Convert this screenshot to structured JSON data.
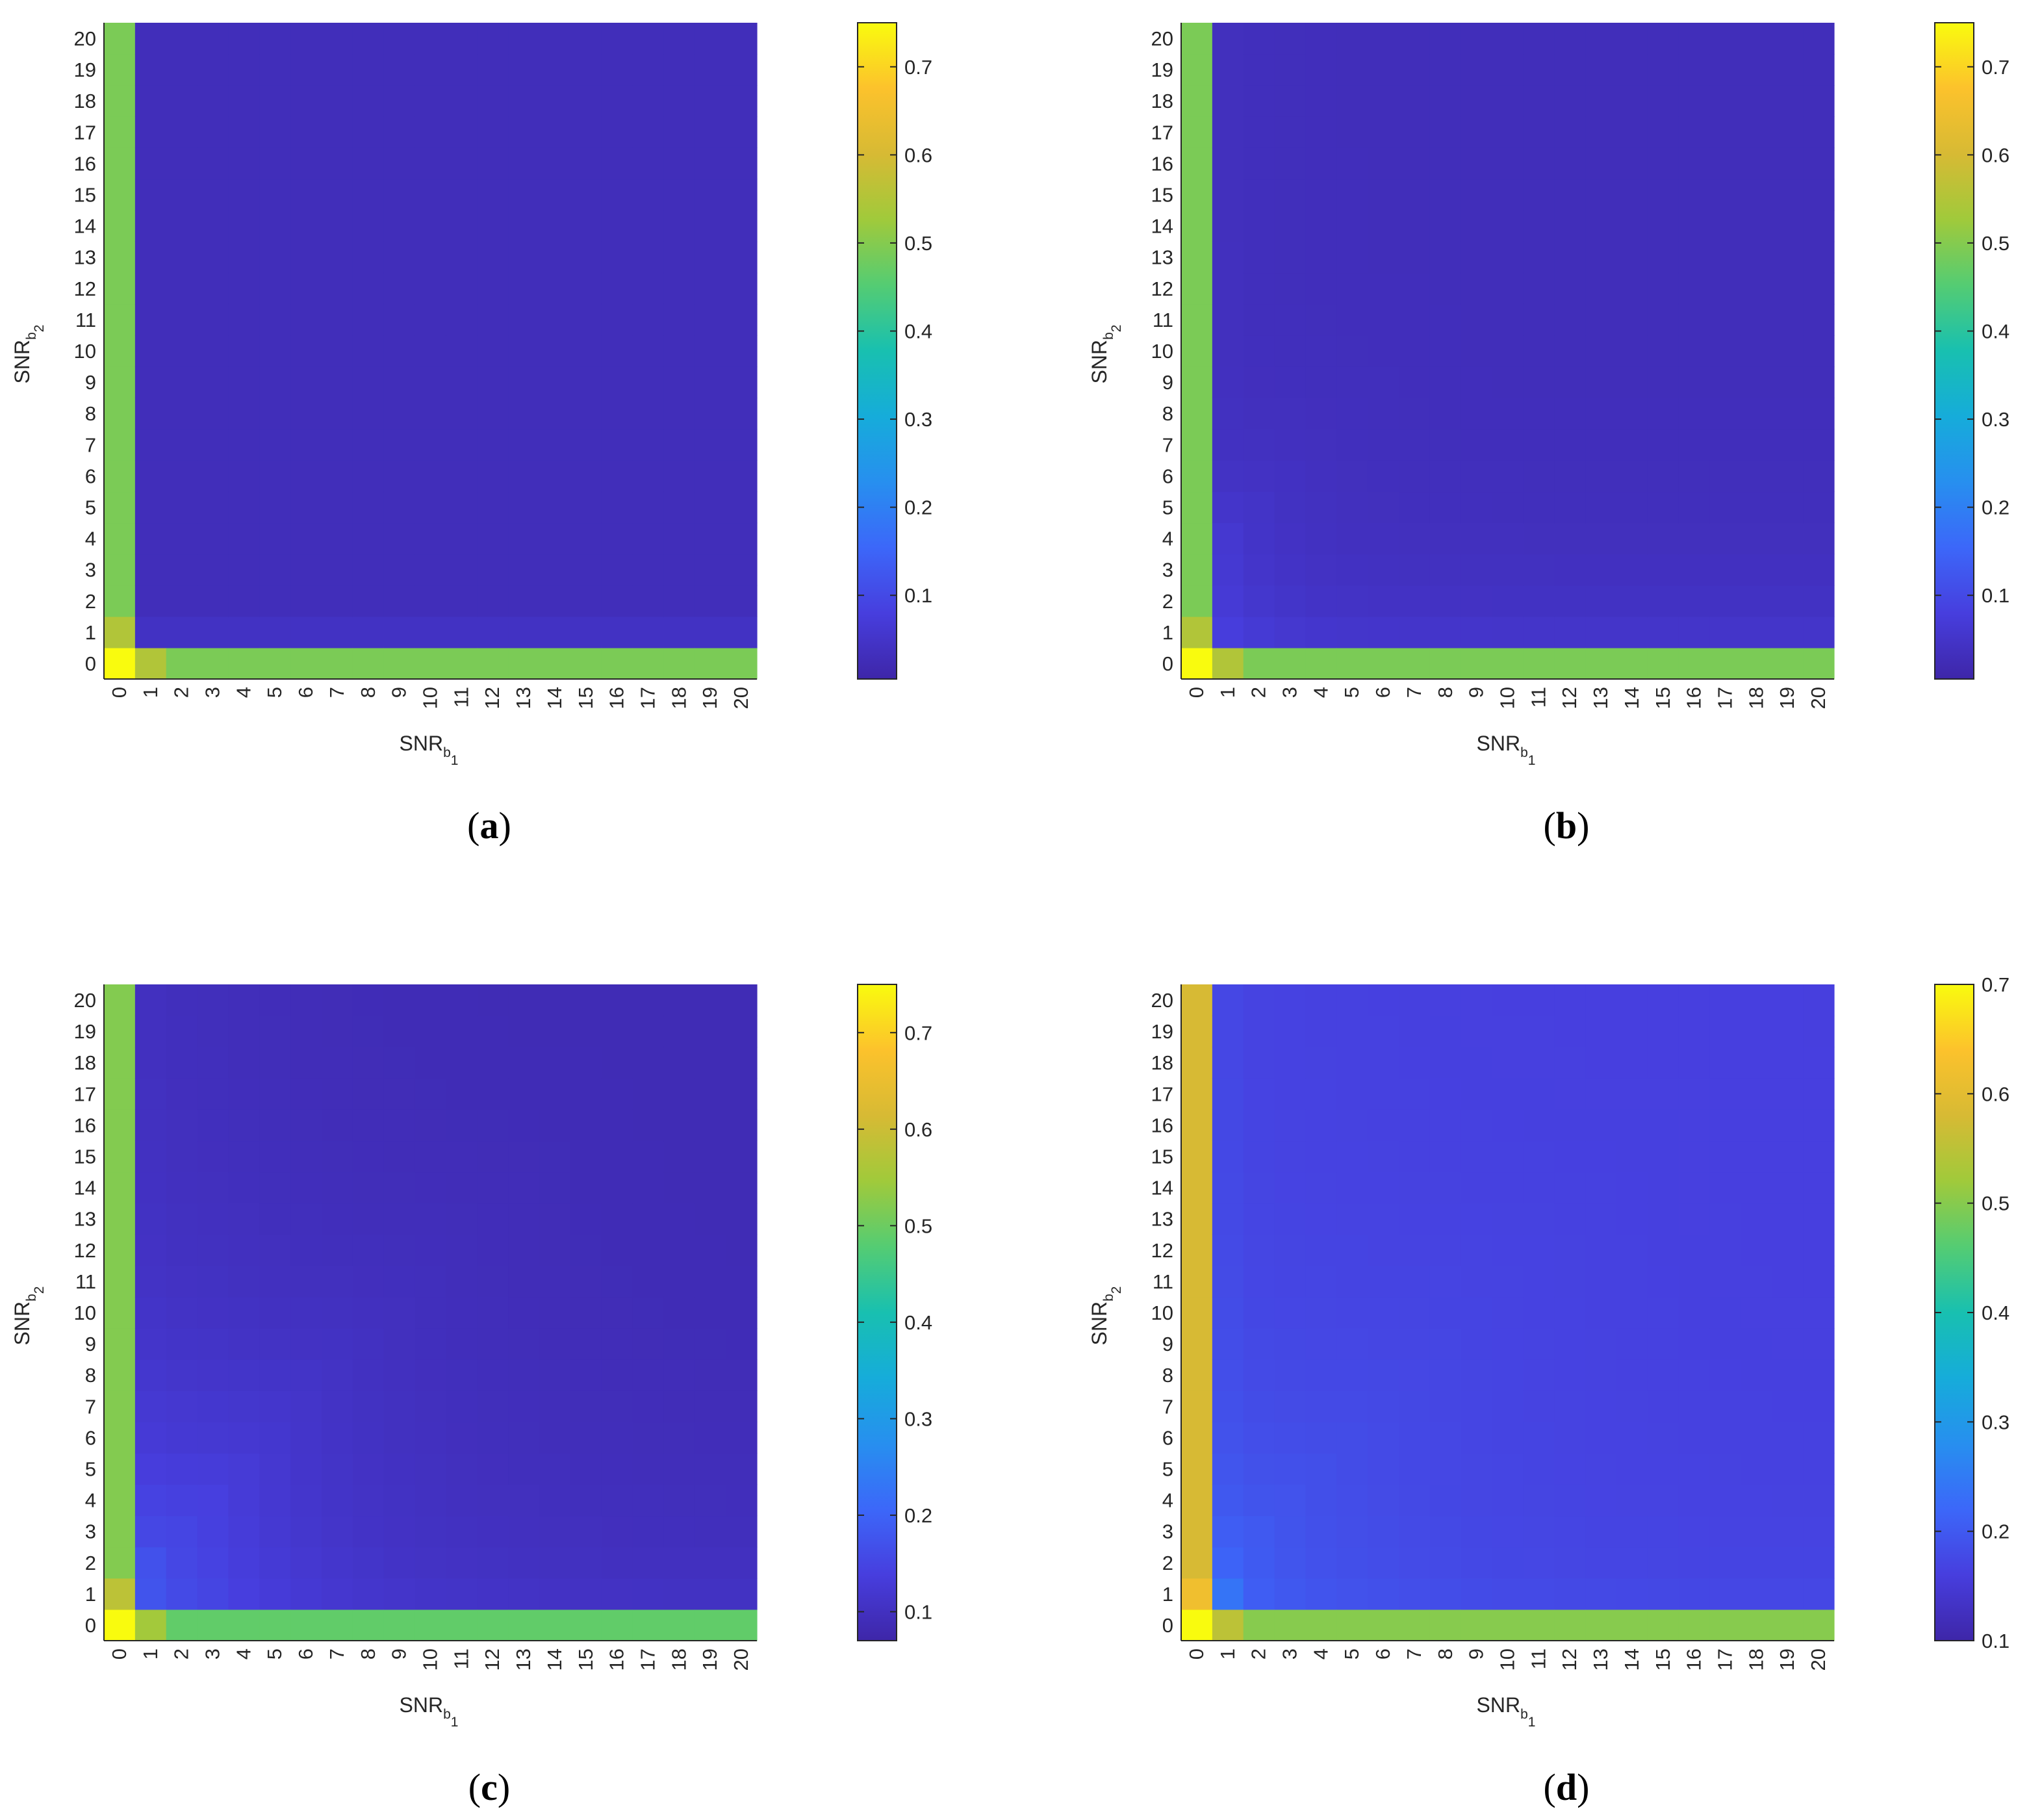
{
  "figure": {
    "panels": [
      {
        "caption_letter": "a",
        "xlabel_main": "SNR",
        "xlabel_sub": "b",
        "xlabel_subsub": "1",
        "ylabel_main": "SNR",
        "ylabel_sub": "b",
        "ylabel_subsub": "2"
      },
      {
        "caption_letter": "b",
        "xlabel_main": "SNR",
        "xlabel_sub": "b",
        "xlabel_subsub": "1",
        "ylabel_main": "SNR",
        "ylabel_sub": "b",
        "ylabel_subsub": "2"
      },
      {
        "caption_letter": "c",
        "xlabel_main": "SNR",
        "xlabel_sub": "b",
        "xlabel_subsub": "1",
        "ylabel_main": "SNR",
        "ylabel_sub": "b",
        "ylabel_subsub": "2"
      },
      {
        "caption_letter": "d",
        "xlabel_main": "SNR",
        "xlabel_sub": "b",
        "xlabel_subsub": "1",
        "ylabel_main": "SNR",
        "ylabel_sub": "b",
        "ylabel_subsub": "2"
      }
    ]
  },
  "chart_data": [
    {
      "type": "heatmap",
      "panel": "a",
      "x": [
        0,
        1,
        2,
        3,
        4,
        5,
        6,
        7,
        8,
        9,
        10,
        11,
        12,
        13,
        14,
        15,
        16,
        17,
        18,
        19,
        20
      ],
      "y": [
        0,
        1,
        2,
        3,
        4,
        5,
        6,
        7,
        8,
        9,
        10,
        11,
        12,
        13,
        14,
        15,
        16,
        17,
        18,
        19,
        20
      ],
      "xlabel": "SNR_b1",
      "ylabel": "SNR_b2",
      "colormap": "parula",
      "clim": [
        0.005,
        0.75
      ],
      "colorbar_ticks": [
        "0.1",
        "0.2",
        "0.3",
        "0.4",
        "0.5",
        "0.6",
        "0.7"
      ],
      "model": {
        "corner": 0.75,
        "first_col": 0.49,
        "first_row": 0.49,
        "col1_near": 0.55,
        "row1_near": 0.55,
        "row1_values": [
          0.11,
          0.03
        ],
        "col1_values": [
          0.03,
          0.03
        ],
        "floor": 0.03,
        "decay": 1.0
      }
    },
    {
      "type": "heatmap",
      "panel": "b",
      "x": [
        0,
        1,
        2,
        3,
        4,
        5,
        6,
        7,
        8,
        9,
        10,
        11,
        12,
        13,
        14,
        15,
        16,
        17,
        18,
        19,
        20
      ],
      "y": [
        0,
        1,
        2,
        3,
        4,
        5,
        6,
        7,
        8,
        9,
        10,
        11,
        12,
        13,
        14,
        15,
        16,
        17,
        18,
        19,
        20
      ],
      "xlabel": "SNR_b1",
      "ylabel": "SNR_b2",
      "colormap": "parula",
      "clim": [
        0.005,
        0.75
      ],
      "colorbar_ticks": [
        "0.1",
        "0.2",
        "0.3",
        "0.4",
        "0.5",
        "0.6",
        "0.7"
      ],
      "model": {
        "corner": 0.75,
        "first_col": 0.49,
        "first_row": 0.49,
        "col1_near": 0.55,
        "row1_near": 0.55,
        "row1_values": [
          0.17,
          0.11,
          0.08,
          0.06,
          0.05
        ],
        "col1_values": [
          0.06
        ],
        "floor": 0.03,
        "decay": 0.55
      }
    },
    {
      "type": "heatmap",
      "panel": "c",
      "x": [
        0,
        1,
        2,
        3,
        4,
        5,
        6,
        7,
        8,
        9,
        10,
        11,
        12,
        13,
        14,
        15,
        16,
        17,
        18,
        19,
        20
      ],
      "y": [
        0,
        1,
        2,
        3,
        4,
        5,
        6,
        7,
        8,
        9,
        10,
        11,
        12,
        13,
        14,
        15,
        16,
        17,
        18,
        19,
        20
      ],
      "xlabel": "SNR_b1",
      "ylabel": "SNR_b2",
      "colormap": "parula",
      "clim": [
        0.07,
        0.75
      ],
      "colorbar_ticks": [
        "0.1",
        "0.2",
        "0.3",
        "0.4",
        "0.5",
        "0.6",
        "0.7"
      ],
      "model": {
        "corner": 0.75,
        "first_col": 0.52,
        "first_row": 0.49,
        "col1_near": 0.58,
        "row1_near": 0.55,
        "row1_values": [
          0.2,
          0.17,
          0.15,
          0.14,
          0.13,
          0.12,
          0.115
        ],
        "col1_values": [
          0.17,
          0.15,
          0.14
        ],
        "floor": 0.085,
        "decay": 0.25
      }
    },
    {
      "type": "heatmap",
      "panel": "d",
      "x": [
        0,
        1,
        2,
        3,
        4,
        5,
        6,
        7,
        8,
        9,
        10,
        11,
        12,
        13,
        14,
        15,
        16,
        17,
        18,
        19,
        20
      ],
      "y": [
        0,
        1,
        2,
        3,
        4,
        5,
        6,
        7,
        8,
        9,
        10,
        11,
        12,
        13,
        14,
        15,
        16,
        17,
        18,
        19,
        20
      ],
      "xlabel": "SNR_b1",
      "ylabel": "SNR_b2",
      "colormap": "parula",
      "clim": [
        0.1,
        0.7
      ],
      "colorbar_ticks": [
        "0.1",
        "0.2",
        "0.3",
        "0.4",
        "0.5",
        "0.6",
        "0.7"
      ],
      "model": {
        "corner": 0.7,
        "first_col": 0.58,
        "first_row": 0.5,
        "col1_near": 0.62,
        "row1_near": 0.55,
        "row1_values": [
          0.24,
          0.21,
          0.2,
          0.19,
          0.185
        ],
        "col1_values": [
          0.24,
          0.2,
          0.19
        ],
        "floor": 0.16,
        "decay": 0.2
      }
    }
  ]
}
